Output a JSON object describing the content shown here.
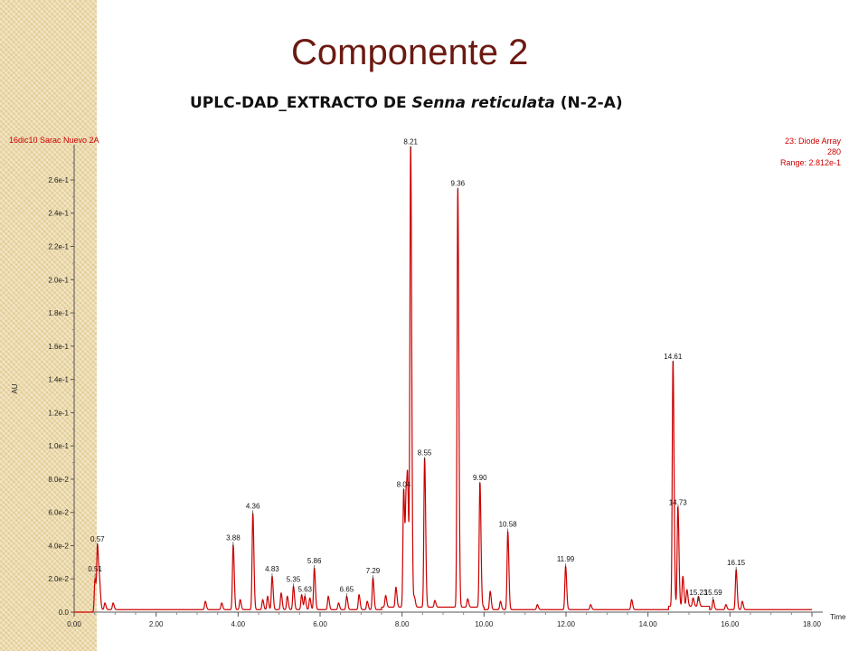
{
  "slide": {
    "title": "Componente 2",
    "subtitle_prefix": "UPLC-DAD_EXTRACTO DE ",
    "subtitle_species": "Senna reticulata",
    "subtitle_suffix": " (N-2-A)"
  },
  "colors": {
    "trace": "#cc0000",
    "title": "#6b1a12",
    "side_strip": "#ecd9a8"
  },
  "chart_data": {
    "type": "line",
    "sample_name": "16dic10 Sarac Nuevo 2A",
    "detector": {
      "channel": "23: Diode Array",
      "wavelength": "280",
      "range": "Range: 2.812e-1"
    },
    "xlabel": "Time",
    "ylabel": "AU",
    "xlim": [
      0,
      18
    ],
    "ylim": [
      0,
      0.2812
    ],
    "x_ticks": [
      {
        "value": 0,
        "label": "0.00"
      },
      {
        "value": 2,
        "label": "2.00"
      },
      {
        "value": 4,
        "label": "4.00"
      },
      {
        "value": 6,
        "label": "6.00"
      },
      {
        "value": 8,
        "label": "8.00"
      },
      {
        "value": 10,
        "label": "10.00"
      },
      {
        "value": 12,
        "label": "12.00"
      },
      {
        "value": 14,
        "label": "14.00"
      },
      {
        "value": 16,
        "label": "16.00"
      },
      {
        "value": 18,
        "label": "18.00"
      }
    ],
    "y_ticks": [
      {
        "value": 0,
        "label": "0.0"
      },
      {
        "value": 0.02,
        "label": "2.0e-2"
      },
      {
        "value": 0.04,
        "label": "4.0e-2"
      },
      {
        "value": 0.06,
        "label": "6.0e-2"
      },
      {
        "value": 0.08,
        "label": "8.0e-2"
      },
      {
        "value": 0.1,
        "label": "1.0e-1"
      },
      {
        "value": 0.12,
        "label": "1.2e-1"
      },
      {
        "value": 0.14,
        "label": "1.4e-1"
      },
      {
        "value": 0.16,
        "label": "1.6e-1"
      },
      {
        "value": 0.18,
        "label": "1.8e-1"
      },
      {
        "value": 0.2,
        "label": "2.0e-1"
      },
      {
        "value": 0.22,
        "label": "2.2e-1"
      },
      {
        "value": 0.24,
        "label": "2.4e-1"
      },
      {
        "value": 0.26,
        "label": "2.6e-1"
      }
    ],
    "peaks": [
      {
        "label": "0.51",
        "time": 0.51,
        "height": 0.02
      },
      {
        "label": "0.57",
        "time": 0.57,
        "height": 0.038
      },
      {
        "label": "3.88",
        "time": 3.88,
        "height": 0.039
      },
      {
        "label": "4.36",
        "time": 4.36,
        "height": 0.058
      },
      {
        "label": "4.83",
        "time": 4.83,
        "height": 0.02
      },
      {
        "label": "5.35",
        "time": 5.35,
        "height": 0.014
      },
      {
        "label": "5.63",
        "time": 5.63,
        "height": 0.008
      },
      {
        "label": "5.86",
        "time": 5.86,
        "height": 0.025
      },
      {
        "label": "6.65",
        "time": 6.65,
        "height": 0.008
      },
      {
        "label": "7.29",
        "time": 7.29,
        "height": 0.019
      },
      {
        "label": "8.04",
        "time": 8.04,
        "height": 0.071
      },
      {
        "label": "8.21",
        "time": 8.21,
        "height": 0.277
      },
      {
        "label": "8.55",
        "time": 8.55,
        "height": 0.09
      },
      {
        "label": "9.36",
        "time": 9.36,
        "height": 0.252
      },
      {
        "label": "9.90",
        "time": 9.9,
        "height": 0.075
      },
      {
        "label": "10.58",
        "time": 10.58,
        "height": 0.047
      },
      {
        "label": "11.99",
        "time": 11.99,
        "height": 0.026
      },
      {
        "label": "14.61",
        "time": 14.61,
        "height": 0.148
      },
      {
        "label": "14.73",
        "time": 14.73,
        "height": 0.06
      },
      {
        "label": "15.23",
        "time": 15.23,
        "height": 0.006
      },
      {
        "label": "15.59",
        "time": 15.59,
        "height": 0.006
      },
      {
        "label": "16.15",
        "time": 16.15,
        "height": 0.024
      }
    ],
    "minor_peaks": [
      {
        "time": 0.62,
        "height": 0.015
      },
      {
        "time": 0.75,
        "height": 0.004
      },
      {
        "time": 0.95,
        "height": 0.004
      },
      {
        "time": 3.2,
        "height": 0.005
      },
      {
        "time": 3.6,
        "height": 0.004
      },
      {
        "time": 4.05,
        "height": 0.006
      },
      {
        "time": 4.6,
        "height": 0.006
      },
      {
        "time": 4.72,
        "height": 0.008
      },
      {
        "time": 5.05,
        "height": 0.01
      },
      {
        "time": 5.2,
        "height": 0.008
      },
      {
        "time": 5.55,
        "height": 0.009
      },
      {
        "time": 5.75,
        "height": 0.007
      },
      {
        "time": 6.2,
        "height": 0.008
      },
      {
        "time": 6.45,
        "height": 0.004
      },
      {
        "time": 6.95,
        "height": 0.009
      },
      {
        "time": 7.15,
        "height": 0.005
      },
      {
        "time": 7.6,
        "height": 0.007
      },
      {
        "time": 7.85,
        "height": 0.012
      },
      {
        "time": 8.1,
        "height": 0.063
      },
      {
        "time": 8.14,
        "height": 0.06
      },
      {
        "time": 8.3,
        "height": 0.006
      },
      {
        "time": 8.8,
        "height": 0.004
      },
      {
        "time": 9.6,
        "height": 0.005
      },
      {
        "time": 10.15,
        "height": 0.011
      },
      {
        "time": 10.4,
        "height": 0.005
      },
      {
        "time": 11.3,
        "height": 0.003
      },
      {
        "time": 12.6,
        "height": 0.003
      },
      {
        "time": 13.6,
        "height": 0.006
      },
      {
        "time": 14.85,
        "height": 0.018
      },
      {
        "time": 14.95,
        "height": 0.01
      },
      {
        "time": 15.1,
        "height": 0.005
      },
      {
        "time": 15.9,
        "height": 0.003
      },
      {
        "time": 16.3,
        "height": 0.005
      }
    ]
  }
}
